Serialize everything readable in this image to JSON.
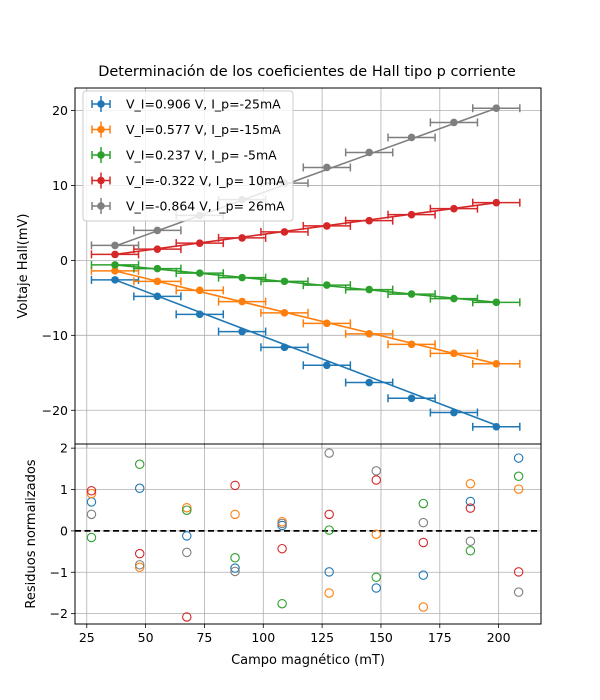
{
  "chart_data": [
    {
      "type": "scatter",
      "title": "Determinación de los coeficientes de Hall tipo p corriente",
      "ylabel": "Voltaje Hall(mV)",
      "xlim": [
        20,
        218
      ],
      "ylim": [
        -24.5,
        23
      ],
      "xticks": [
        25,
        50,
        75,
        100,
        125,
        150,
        175,
        200
      ],
      "yticks": [
        -20,
        -10,
        0,
        10,
        20
      ],
      "ytick_labels": [
        "−20",
        "−10",
        "0",
        "10",
        "20"
      ],
      "grid": true,
      "legend_position": "upper-left",
      "x": [
        37,
        55,
        73,
        91,
        109,
        127,
        145,
        163,
        181,
        199
      ],
      "xerr": 10,
      "series": [
        {
          "name": "V_I=0.906 V, I_p=-25mA",
          "color": "#1f77b4",
          "values": [
            -2.6,
            -4.8,
            -7.2,
            -9.5,
            -11.6,
            -14.0,
            -16.3,
            -18.4,
            -20.3,
            -22.2
          ],
          "fit": [
            -2.6,
            -22.0
          ]
        },
        {
          "name": "V_I=0.577 V, I_p=-15mA",
          "color": "#ff7f0e",
          "values": [
            -1.4,
            -2.8,
            -4.0,
            -5.5,
            -7.0,
            -8.4,
            -9.8,
            -11.2,
            -12.4,
            -13.8
          ],
          "fit": [
            -1.4,
            -13.8
          ]
        },
        {
          "name": "V_I=0.237 V, I_p= -5mA",
          "color": "#2ca02c",
          "values": [
            -0.6,
            -1.1,
            -1.7,
            -2.3,
            -2.8,
            -3.3,
            -3.9,
            -4.5,
            -5.1,
            -5.6
          ],
          "fit": [
            -0.6,
            -5.6
          ]
        },
        {
          "name": "V_I=-0.322 V, I_p= 10mA",
          "color": "#d62728",
          "values": [
            0.8,
            1.5,
            2.3,
            3.0,
            3.8,
            4.6,
            5.3,
            6.1,
            6.9,
            7.7
          ],
          "fit": [
            0.8,
            7.7
          ]
        },
        {
          "name": "V_I=-0.864 V, I_p= 26mA",
          "color": "#7f7f7f",
          "values": [
            2.0,
            4.0,
            6.0,
            8.1,
            10.3,
            12.4,
            14.4,
            16.4,
            18.4,
            20.3
          ],
          "fit": [
            1.9,
            20.3
          ]
        }
      ]
    },
    {
      "type": "scatter",
      "xlabel": "Campo magnético (mT)",
      "ylabel": "Residuos normalizados",
      "xlim": [
        20,
        218
      ],
      "ylim": [
        -2.25,
        2.1
      ],
      "xticks": [
        25,
        50,
        75,
        100,
        125,
        150,
        175,
        200
      ],
      "yticks": [
        -2,
        -1,
        0,
        1,
        2
      ],
      "ytick_labels": [
        "−2",
        "−1",
        "0",
        "1",
        "2"
      ],
      "grid": true,
      "reference_line": 0,
      "x": [
        27,
        47.5,
        67.5,
        88,
        108,
        128,
        148,
        168,
        188,
        208.5
      ],
      "series": [
        {
          "name": "V_I=0.906 V, I_p=-25mA",
          "color": "#1f77b4",
          "values": [
            0.7,
            1.03,
            -0.12,
            -0.9,
            0.13,
            -0.99,
            -1.38,
            -1.07,
            0.71,
            1.76
          ]
        },
        {
          "name": "V_I=0.577 V, I_p=-15mA",
          "color": "#ff7f0e",
          "values": [
            0.9,
            -0.88,
            0.56,
            0.4,
            0.22,
            -1.5,
            -0.08,
            -1.84,
            1.14,
            1.01
          ]
        },
        {
          "name": "V_I=0.237 V, I_p= -5mA",
          "color": "#2ca02c",
          "values": [
            -0.16,
            1.61,
            0.5,
            -0.65,
            -1.76,
            0.02,
            -1.12,
            0.66,
            -0.48,
            1.32
          ]
        },
        {
          "name": "V_I=-0.322 V, I_p= 10mA",
          "color": "#d62728",
          "values": [
            0.97,
            -0.55,
            -2.08,
            1.1,
            -0.43,
            0.4,
            1.23,
            -0.28,
            0.55,
            -0.99
          ]
        },
        {
          "name": "V_I=-0.864 V, I_p= 26mA",
          "color": "#7f7f7f",
          "values": [
            0.4,
            -0.82,
            -0.52,
            -0.98,
            0.18,
            1.88,
            1.45,
            0.2,
            -0.25,
            -1.48
          ]
        }
      ]
    }
  ]
}
